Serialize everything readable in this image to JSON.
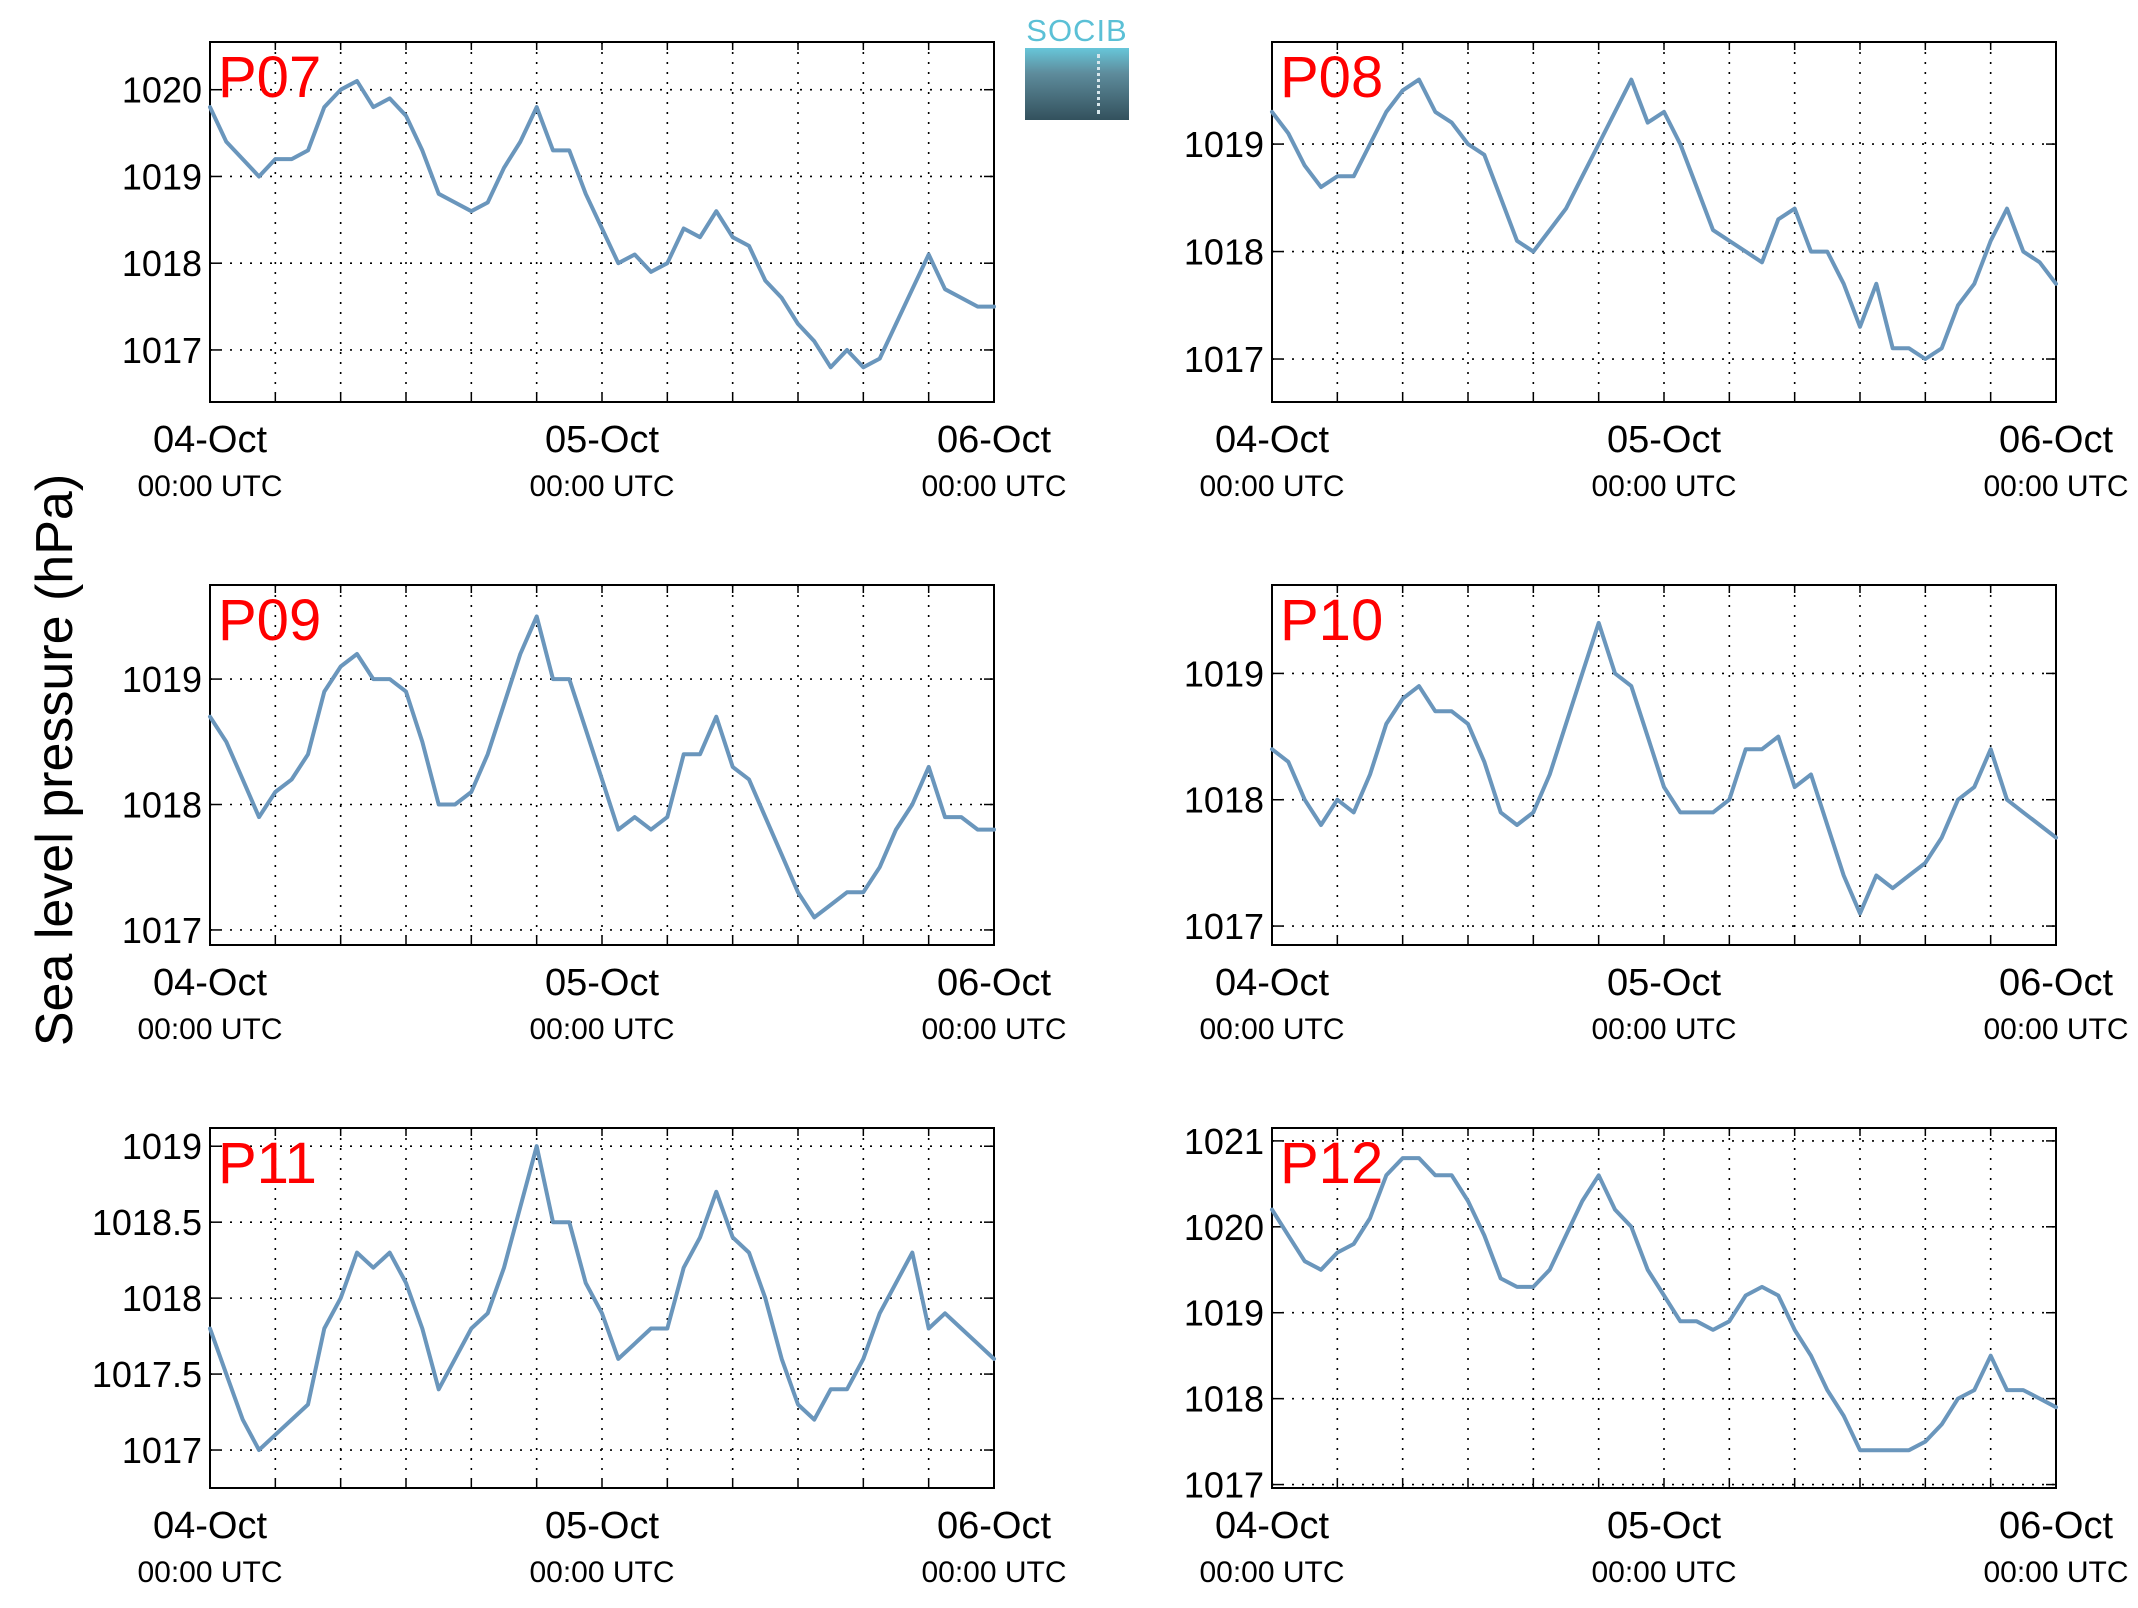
{
  "figure": {
    "ylabel": "Sea level pressure (hPa)",
    "logo_text": "SOCIB"
  },
  "style": {
    "line_color": "#6a96bc",
    "title_color": "#ff0000",
    "grid_color": "#000000"
  },
  "chart_data": [
    {
      "type": "line",
      "title": "P07",
      "x_ticks": [
        {
          "date": "04-Oct",
          "time": "00:00 UTC"
        },
        {
          "date": "05-Oct",
          "time": "00:00 UTC"
        },
        {
          "date": "06-Oct",
          "time": "00:00 UTC"
        }
      ],
      "y_ticks": [
        "1017",
        "1018",
        "1019",
        "1020"
      ],
      "ylim": [
        1016.4,
        1020.55
      ],
      "x_range_hours": [
        0,
        48
      ],
      "grid": true,
      "x": [
        0,
        1,
        2,
        3,
        4,
        5,
        6,
        7,
        8,
        9,
        10,
        11,
        12,
        13,
        14,
        15,
        16,
        17,
        18,
        19,
        20,
        21,
        22,
        23,
        24,
        25,
        26,
        27,
        28,
        29,
        30,
        31,
        32,
        33,
        34,
        35,
        36,
        37,
        38,
        39,
        40,
        41,
        42,
        43,
        44,
        45,
        46,
        47,
        48
      ],
      "y": [
        1019.8,
        1019.4,
        1019.2,
        1019.0,
        1019.2,
        1019.2,
        1019.3,
        1019.8,
        1020.0,
        1020.1,
        1019.8,
        1019.9,
        1019.7,
        1019.3,
        1018.8,
        1018.7,
        1018.6,
        1018.7,
        1019.1,
        1019.4,
        1019.8,
        1019.3,
        1019.3,
        1018.8,
        1018.4,
        1018.0,
        1018.1,
        1017.9,
        1018.0,
        1018.4,
        1018.3,
        1018.6,
        1018.3,
        1018.2,
        1017.8,
        1017.6,
        1017.3,
        1017.1,
        1016.8,
        1017.0,
        1016.8,
        1016.9,
        1017.3,
        1017.7,
        1018.1,
        1017.7,
        1017.6,
        1017.5,
        1017.5
      ]
    },
    {
      "type": "line",
      "title": "P08",
      "x_ticks": [
        {
          "date": "04-Oct",
          "time": "00:00 UTC"
        },
        {
          "date": "05-Oct",
          "time": "00:00 UTC"
        },
        {
          "date": "06-Oct",
          "time": "00:00 UTC"
        }
      ],
      "y_ticks": [
        "1017",
        "1018",
        "1019"
      ],
      "ylim": [
        1016.6,
        1019.95
      ],
      "x_range_hours": [
        0,
        48
      ],
      "grid": true,
      "x": [
        0,
        1,
        2,
        3,
        4,
        5,
        6,
        7,
        8,
        9,
        10,
        11,
        12,
        13,
        14,
        15,
        16,
        17,
        18,
        19,
        20,
        21,
        22,
        23,
        24,
        25,
        26,
        27,
        28,
        29,
        30,
        31,
        32,
        33,
        34,
        35,
        36,
        37,
        38,
        39,
        40,
        41,
        42,
        43,
        44,
        45,
        46,
        47,
        48
      ],
      "y": [
        1019.3,
        1019.1,
        1018.8,
        1018.6,
        1018.7,
        1018.7,
        1019.0,
        1019.3,
        1019.5,
        1019.6,
        1019.3,
        1019.2,
        1019.0,
        1018.9,
        1018.5,
        1018.1,
        1018.0,
        1018.2,
        1018.4,
        1018.7,
        1019.0,
        1019.3,
        1019.6,
        1019.2,
        1019.3,
        1019.0,
        1018.6,
        1018.2,
        1018.1,
        1018.0,
        1017.9,
        1018.3,
        1018.4,
        1018.0,
        1018.0,
        1017.7,
        1017.3,
        1017.7,
        1017.1,
        1017.1,
        1017.0,
        1017.1,
        1017.5,
        1017.7,
        1018.1,
        1018.4,
        1018.0,
        1017.9,
        1017.7
      ]
    },
    {
      "type": "line",
      "title": "P09",
      "x_ticks": [
        {
          "date": "04-Oct",
          "time": "00:00 UTC"
        },
        {
          "date": "05-Oct",
          "time": "00:00 UTC"
        },
        {
          "date": "06-Oct",
          "time": "00:00 UTC"
        }
      ],
      "y_ticks": [
        "1017",
        "1018",
        "1019"
      ],
      "ylim": [
        1016.88,
        1019.75
      ],
      "x_range_hours": [
        0,
        48
      ],
      "grid": true,
      "x": [
        0,
        1,
        2,
        3,
        4,
        5,
        6,
        7,
        8,
        9,
        10,
        11,
        12,
        13,
        14,
        15,
        16,
        17,
        18,
        19,
        20,
        21,
        22,
        23,
        24,
        25,
        26,
        27,
        28,
        29,
        30,
        31,
        32,
        33,
        34,
        35,
        36,
        37,
        38,
        39,
        40,
        41,
        42,
        43,
        44,
        45,
        46,
        47,
        48
      ],
      "y": [
        1018.7,
        1018.5,
        1018.2,
        1017.9,
        1018.1,
        1018.2,
        1018.4,
        1018.9,
        1019.1,
        1019.2,
        1019.0,
        1019.0,
        1018.9,
        1018.5,
        1018.0,
        1018.0,
        1018.1,
        1018.4,
        1018.8,
        1019.2,
        1019.5,
        1019.0,
        1019.0,
        1018.6,
        1018.2,
        1017.8,
        1017.9,
        1017.8,
        1017.9,
        1018.4,
        1018.4,
        1018.7,
        1018.3,
        1018.2,
        1017.9,
        1017.6,
        1017.3,
        1017.1,
        1017.2,
        1017.3,
        1017.3,
        1017.5,
        1017.8,
        1018.0,
        1018.3,
        1017.9,
        1017.9,
        1017.8,
        1017.8
      ]
    },
    {
      "type": "line",
      "title": "P10",
      "x_ticks": [
        {
          "date": "04-Oct",
          "time": "00:00 UTC"
        },
        {
          "date": "05-Oct",
          "time": "00:00 UTC"
        },
        {
          "date": "06-Oct",
          "time": "00:00 UTC"
        }
      ],
      "y_ticks": [
        "1017",
        "1018",
        "1019"
      ],
      "ylim": [
        1016.85,
        1019.7
      ],
      "x_range_hours": [
        0,
        48
      ],
      "grid": true,
      "x": [
        0,
        1,
        2,
        3,
        4,
        5,
        6,
        7,
        8,
        9,
        10,
        11,
        12,
        13,
        14,
        15,
        16,
        17,
        18,
        19,
        20,
        21,
        22,
        23,
        24,
        25,
        26,
        27,
        28,
        29,
        30,
        31,
        32,
        33,
        34,
        35,
        36,
        37,
        38,
        39,
        40,
        41,
        42,
        43,
        44,
        45,
        46,
        47,
        48
      ],
      "y": [
        1018.4,
        1018.3,
        1018.0,
        1017.8,
        1018.0,
        1017.9,
        1018.2,
        1018.6,
        1018.8,
        1018.9,
        1018.7,
        1018.7,
        1018.6,
        1018.3,
        1017.9,
        1017.8,
        1017.9,
        1018.2,
        1018.6,
        1019.0,
        1019.4,
        1019.0,
        1018.9,
        1018.5,
        1018.1,
        1017.9,
        1017.9,
        1017.9,
        1018.0,
        1018.4,
        1018.4,
        1018.5,
        1018.1,
        1018.2,
        1017.8,
        1017.4,
        1017.1,
        1017.4,
        1017.3,
        1017.4,
        1017.5,
        1017.7,
        1018.0,
        1018.1,
        1018.4,
        1018.0,
        1017.9,
        1017.8,
        1017.7
      ]
    },
    {
      "type": "line",
      "title": "P11",
      "x_ticks": [
        {
          "date": "04-Oct",
          "time": "00:00 UTC"
        },
        {
          "date": "05-Oct",
          "time": "00:00 UTC"
        },
        {
          "date": "06-Oct",
          "time": "00:00 UTC"
        }
      ],
      "y_ticks": [
        "1017",
        "1017.5",
        "1018",
        "1018.5",
        "1019"
      ],
      "ylim": [
        1016.75,
        1019.12
      ],
      "x_range_hours": [
        0,
        48
      ],
      "grid": true,
      "x": [
        0,
        1,
        2,
        3,
        4,
        5,
        6,
        7,
        8,
        9,
        10,
        11,
        12,
        13,
        14,
        15,
        16,
        17,
        18,
        19,
        20,
        21,
        22,
        23,
        24,
        25,
        26,
        27,
        28,
        29,
        30,
        31,
        32,
        33,
        34,
        35,
        36,
        37,
        38,
        39,
        40,
        41,
        42,
        43,
        44,
        45,
        46,
        47,
        48
      ],
      "y": [
        1017.8,
        1017.5,
        1017.2,
        1017.0,
        1017.1,
        1017.2,
        1017.3,
        1017.8,
        1018.0,
        1018.3,
        1018.2,
        1018.3,
        1018.1,
        1017.8,
        1017.4,
        1017.6,
        1017.8,
        1017.9,
        1018.2,
        1018.6,
        1019.0,
        1018.5,
        1018.5,
        1018.1,
        1017.9,
        1017.6,
        1017.7,
        1017.8,
        1017.8,
        1018.2,
        1018.4,
        1018.7,
        1018.4,
        1018.3,
        1018.0,
        1017.6,
        1017.3,
        1017.2,
        1017.4,
        1017.4,
        1017.6,
        1017.9,
        1018.1,
        1018.3,
        1017.8,
        1017.9,
        1017.8,
        1017.7,
        1017.6
      ]
    },
    {
      "type": "line",
      "title": "P12",
      "x_ticks": [
        {
          "date": "04-Oct",
          "time": "00:00 UTC"
        },
        {
          "date": "05-Oct",
          "time": "00:00 UTC"
        },
        {
          "date": "06-Oct",
          "time": "00:00 UTC"
        }
      ],
      "y_ticks": [
        "1017",
        "1018",
        "1019",
        "1020",
        "1021"
      ],
      "ylim": [
        1016.96,
        1021.15
      ],
      "x_range_hours": [
        0,
        48
      ],
      "grid": true,
      "x": [
        0,
        1,
        2,
        3,
        4,
        5,
        6,
        7,
        8,
        9,
        10,
        11,
        12,
        13,
        14,
        15,
        16,
        17,
        18,
        19,
        20,
        21,
        22,
        23,
        24,
        25,
        26,
        27,
        28,
        29,
        30,
        31,
        32,
        33,
        34,
        35,
        36,
        37,
        38,
        39,
        40,
        41,
        42,
        43,
        44,
        45,
        46,
        47,
        48
      ],
      "y": [
        1020.2,
        1019.9,
        1019.6,
        1019.5,
        1019.7,
        1019.8,
        1020.1,
        1020.6,
        1020.8,
        1020.8,
        1020.6,
        1020.6,
        1020.3,
        1019.9,
        1019.4,
        1019.3,
        1019.3,
        1019.5,
        1019.9,
        1020.3,
        1020.6,
        1020.2,
        1020.0,
        1019.5,
        1019.2,
        1018.9,
        1018.9,
        1018.8,
        1018.9,
        1019.2,
        1019.3,
        1019.2,
        1018.8,
        1018.5,
        1018.1,
        1017.8,
        1017.4,
        1017.4,
        1017.4,
        1017.4,
        1017.5,
        1017.7,
        1018.0,
        1018.1,
        1018.5,
        1018.1,
        1018.1,
        1018.0,
        1017.9
      ]
    }
  ]
}
